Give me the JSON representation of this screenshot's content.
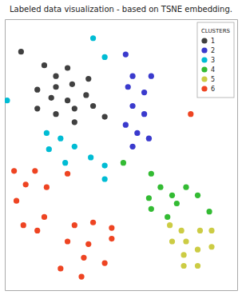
{
  "chart_data": {
    "type": "scatter",
    "title": "Labeled data visualization - based on TSNE embedding.",
    "legend_title": "CLUSTERS",
    "legend": "upper right",
    "xlim": [
      0.0,
      1.0
    ],
    "ylim": [
      0.0,
      1.0
    ],
    "xticks": [],
    "yticks": [],
    "tick_labels": false,
    "grid": false,
    "series": [
      {
        "name": "1",
        "color": "#404040",
        "x": [
          0.07,
          0.17,
          0.22,
          0.27,
          0.22,
          0.29,
          0.36,
          0.14,
          0.2,
          0.27,
          0.35,
          0.14,
          0.22,
          0.3,
          0.38,
          0.3,
          0.43
        ],
        "values": [
          0.88,
          0.83,
          0.79,
          0.82,
          0.75,
          0.76,
          0.78,
          0.74,
          0.71,
          0.7,
          0.72,
          0.67,
          0.65,
          0.67,
          0.68,
          0.62,
          0.64
        ]
      },
      {
        "name": "2",
        "color": "#3a3acd",
        "x": [
          0.52,
          0.55,
          0.63,
          0.53,
          0.6,
          0.55,
          0.6,
          0.52,
          0.57,
          0.62,
          0.55
        ],
        "values": [
          0.87,
          0.79,
          0.79,
          0.75,
          0.73,
          0.68,
          0.65,
          0.61,
          0.58,
          0.56,
          0.53
        ]
      },
      {
        "name": "3",
        "color": "#00bcd4",
        "x": [
          0.38,
          0.43,
          0.01,
          0.18,
          0.24,
          0.19,
          0.3,
          0.26,
          0.37,
          0.43,
          0.43
        ],
        "values": [
          0.93,
          0.86,
          0.7,
          0.58,
          0.56,
          0.52,
          0.53,
          0.47,
          0.49,
          0.46,
          0.41
        ]
      },
      {
        "name": "4",
        "color": "#33bb33",
        "x": [
          0.51,
          0.63,
          0.67,
          0.62,
          0.72,
          0.63,
          0.7,
          0.74,
          0.78,
          0.83,
          0.88
        ],
        "values": [
          0.47,
          0.43,
          0.38,
          0.34,
          0.35,
          0.3,
          0.27,
          0.32,
          0.38,
          0.35,
          0.29
        ]
      },
      {
        "name": "5",
        "color": "#cccc44",
        "x": [
          0.71,
          0.76,
          0.72,
          0.78,
          0.84,
          0.89,
          0.77,
          0.83,
          0.89,
          0.77,
          0.83
        ],
        "values": [
          0.24,
          0.22,
          0.18,
          0.18,
          0.22,
          0.22,
          0.13,
          0.15,
          0.16,
          0.09,
          0.09
        ]
      },
      {
        "name": "6",
        "color": "#ee4422",
        "x": [
          0.04,
          0.13,
          0.27,
          0.09,
          0.18,
          0.05,
          0.08,
          0.14,
          0.17,
          0.3,
          0.38,
          0.46,
          0.27,
          0.36,
          0.46,
          0.34,
          0.43,
          0.24,
          0.33,
          0.8
        ],
        "values": [
          0.44,
          0.44,
          0.43,
          0.39,
          0.38,
          0.33,
          0.24,
          0.22,
          0.27,
          0.24,
          0.25,
          0.23,
          0.18,
          0.17,
          0.19,
          0.12,
          0.1,
          0.08,
          0.05,
          0.65
        ]
      }
    ]
  }
}
